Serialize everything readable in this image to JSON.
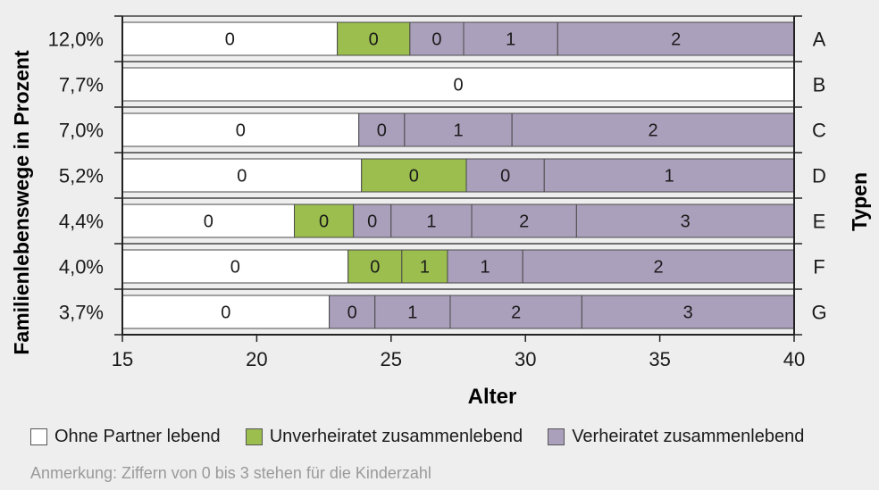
{
  "chart_data": {
    "type": "bar",
    "orientation": "horizontal",
    "stacked": true,
    "xlabel": "Alter",
    "ylabel": "Familienlebenswege in Prozent",
    "right_label": "Typen",
    "xlim": [
      15,
      40
    ],
    "xticks": [
      15,
      20,
      25,
      30,
      35,
      40
    ],
    "colors": {
      "Ohne Partner lebend": "#ffffff",
      "Unverheiratet zusammenlebend": "#9bbe4e",
      "Verheiratet zusammenlebend": "#aba0bc"
    },
    "rows": [
      {
        "type": "A",
        "percent": "12,0%",
        "segments": [
          {
            "from": 15,
            "to": 23.0,
            "status": "Ohne Partner lebend",
            "label": "0"
          },
          {
            "from": 23.0,
            "to": 25.7,
            "status": "Unverheiratet zusammenlebend",
            "label": "0"
          },
          {
            "from": 25.7,
            "to": 27.7,
            "status": "Verheiratet zusammenlebend",
            "label": "0"
          },
          {
            "from": 27.7,
            "to": 31.2,
            "status": "Verheiratet zusammenlebend",
            "label": "1"
          },
          {
            "from": 31.2,
            "to": 40,
            "status": "Verheiratet zusammenlebend",
            "label": "2"
          }
        ]
      },
      {
        "type": "B",
        "percent": "7,7%",
        "segments": [
          {
            "from": 15,
            "to": 40,
            "status": "Ohne Partner lebend",
            "label": "0"
          }
        ]
      },
      {
        "type": "C",
        "percent": "7,0%",
        "segments": [
          {
            "from": 15,
            "to": 23.8,
            "status": "Ohne Partner lebend",
            "label": "0"
          },
          {
            "from": 23.8,
            "to": 25.5,
            "status": "Verheiratet zusammenlebend",
            "label": "0"
          },
          {
            "from": 25.5,
            "to": 29.5,
            "status": "Verheiratet zusammenlebend",
            "label": "1"
          },
          {
            "from": 29.5,
            "to": 40,
            "status": "Verheiratet zusammenlebend",
            "label": "2"
          }
        ]
      },
      {
        "type": "D",
        "percent": "5,2%",
        "segments": [
          {
            "from": 15,
            "to": 23.9,
            "status": "Ohne Partner lebend",
            "label": "0"
          },
          {
            "from": 23.9,
            "to": 27.8,
            "status": "Unverheiratet zusammenlebend",
            "label": "0"
          },
          {
            "from": 27.8,
            "to": 30.7,
            "status": "Verheiratet zusammenlebend",
            "label": "0"
          },
          {
            "from": 30.7,
            "to": 40,
            "status": "Verheiratet zusammenlebend",
            "label": "1"
          }
        ]
      },
      {
        "type": "E",
        "percent": "4,4%",
        "segments": [
          {
            "from": 15,
            "to": 21.4,
            "status": "Ohne Partner lebend",
            "label": "0"
          },
          {
            "from": 21.4,
            "to": 23.6,
            "status": "Unverheiratet zusammenlebend",
            "label": "0"
          },
          {
            "from": 23.6,
            "to": 25.0,
            "status": "Verheiratet zusammenlebend",
            "label": "0"
          },
          {
            "from": 25.0,
            "to": 28.0,
            "status": "Verheiratet zusammenlebend",
            "label": "1"
          },
          {
            "from": 28.0,
            "to": 31.9,
            "status": "Verheiratet zusammenlebend",
            "label": "2"
          },
          {
            "from": 31.9,
            "to": 40,
            "status": "Verheiratet zusammenlebend",
            "label": "3"
          }
        ]
      },
      {
        "type": "F",
        "percent": "4,0%",
        "segments": [
          {
            "from": 15,
            "to": 23.4,
            "status": "Ohne Partner lebend",
            "label": "0"
          },
          {
            "from": 23.4,
            "to": 25.4,
            "status": "Unverheiratet zusammenlebend",
            "label": "0"
          },
          {
            "from": 25.4,
            "to": 27.1,
            "status": "Unverheiratet zusammenlebend",
            "label": "1"
          },
          {
            "from": 27.1,
            "to": 29.9,
            "status": "Verheiratet zusammenlebend",
            "label": "1"
          },
          {
            "from": 29.9,
            "to": 40,
            "status": "Verheiratet zusammenlebend",
            "label": "2"
          }
        ]
      },
      {
        "type": "G",
        "percent": "3,7%",
        "segments": [
          {
            "from": 15,
            "to": 22.7,
            "status": "Ohne Partner lebend",
            "label": "0"
          },
          {
            "from": 22.7,
            "to": 24.4,
            "status": "Verheiratet zusammenlebend",
            "label": "0"
          },
          {
            "from": 24.4,
            "to": 27.2,
            "status": "Verheiratet zusammenlebend",
            "label": "1"
          },
          {
            "from": 27.2,
            "to": 32.1,
            "status": "Verheiratet zusammenlebend",
            "label": "2"
          },
          {
            "from": 32.1,
            "to": 40,
            "status": "Verheiratet zusammenlebend",
            "label": "3"
          }
        ]
      }
    ]
  },
  "legend": {
    "items": [
      {
        "label": "Ohne Partner lebend",
        "color": "#ffffff"
      },
      {
        "label": "Unverheiratet zusammenlebend",
        "color": "#9bbe4e"
      },
      {
        "label": "Verheiratet zusammenlebend",
        "color": "#aba0bc"
      }
    ]
  },
  "note": "Anmerkung: Ziffern von 0 bis 3 stehen für die Kinderzahl"
}
